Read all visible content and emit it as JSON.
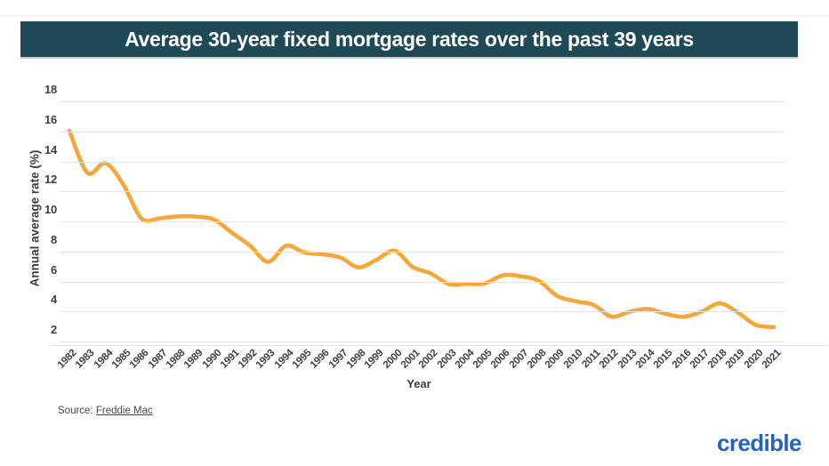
{
  "header": {
    "title": "Average 30-year fixed mortgage rates over the past 39 years",
    "background_color": "#1d4a55"
  },
  "chart_data": {
    "type": "line",
    "title": "Average 30-year fixed mortgage rates over the past 39 years",
    "xlabel": "Year",
    "ylabel": "Annual average rate (%)",
    "categories": [
      "1982",
      "1983",
      "1984",
      "1985",
      "1986",
      "1987",
      "1988",
      "1989",
      "1990",
      "1991",
      "1992",
      "1993",
      "1994",
      "1995",
      "1996",
      "1997",
      "1998",
      "1999",
      "2000",
      "2001",
      "2002",
      "2003",
      "2004",
      "2005",
      "2006",
      "2007",
      "2008",
      "2009",
      "2010",
      "2011",
      "2012",
      "2013",
      "2014",
      "2015",
      "2016",
      "2017",
      "2018",
      "2019",
      "2020",
      "2021"
    ],
    "series": [
      {
        "name": "30-year fixed mortgage annual average rate",
        "color": "#f5a73c",
        "values": [
          16.04,
          13.24,
          13.88,
          12.43,
          10.19,
          10.21,
          10.34,
          10.32,
          10.13,
          9.25,
          8.39,
          7.31,
          8.38,
          7.93,
          7.81,
          7.6,
          6.94,
          7.44,
          8.05,
          6.97,
          6.54,
          5.83,
          5.84,
          5.87,
          6.41,
          6.34,
          6.03,
          5.04,
          4.69,
          4.45,
          3.66,
          3.98,
          4.17,
          3.85,
          3.65,
          3.99,
          4.54,
          3.94,
          3.1,
          2.96
        ]
      }
    ],
    "yticks": [
      2,
      4,
      6,
      8,
      10,
      12,
      14,
      16,
      18
    ],
    "ylim": [
      2,
      18
    ],
    "grid": true,
    "legend": "none"
  },
  "footer": {
    "source_prefix": "Source:",
    "source_link": "Freddie Mac",
    "brand": "credible",
    "brand_color": "#2263c5"
  }
}
